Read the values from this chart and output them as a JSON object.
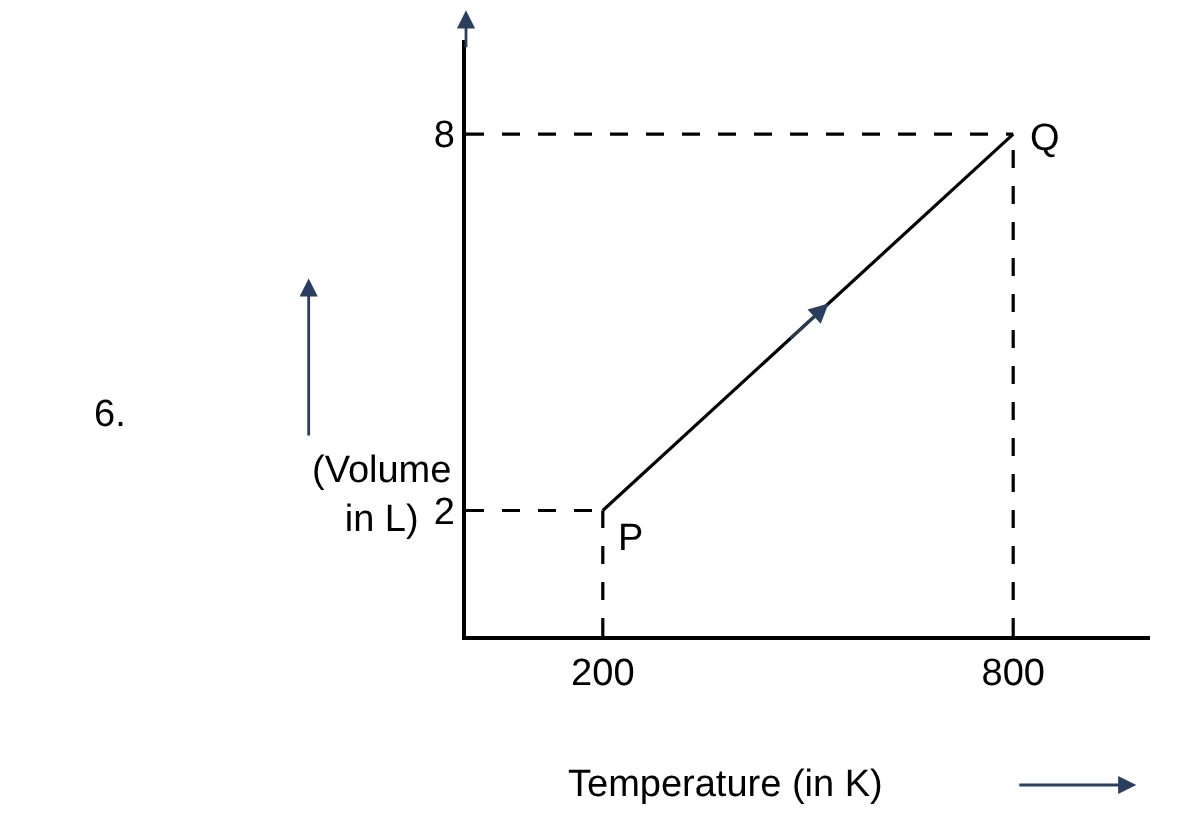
{
  "chart_data": {
    "type": "line",
    "xlabel": "Temperature (in K)",
    "ylabel": "(Volume in L)",
    "xlim": [
      0,
      1000
    ],
    "ylim": [
      0,
      9.5
    ],
    "xticks": [
      200,
      800
    ],
    "yticks": [
      2,
      8
    ],
    "marker": "none",
    "series": [
      {
        "x": [
          200,
          800
        ],
        "values": [
          2,
          8
        ],
        "color": "#000000",
        "line_style": "solid"
      },
      {
        "x": [
          0,
          200
        ],
        "values": [
          2,
          2
        ],
        "color": "#000000",
        "line_style": "dashed"
      },
      {
        "x": [
          200,
          200
        ],
        "values": [
          0,
          2
        ],
        "color": "#000000",
        "line_style": "dashed"
      },
      {
        "x": [
          0,
          800
        ],
        "values": [
          8,
          8
        ],
        "color": "#000000",
        "line_style": "dashed"
      },
      {
        "x": [
          800,
          800
        ],
        "values": [
          0,
          8
        ],
        "color": "#000000",
        "line_style": "dashed"
      }
    ],
    "annotations": [
      "6.",
      {
        "text": "P",
        "x": 200,
        "y": 2
      },
      {
        "text": "Q",
        "x": 800,
        "y": 8
      }
    ]
  }
}
